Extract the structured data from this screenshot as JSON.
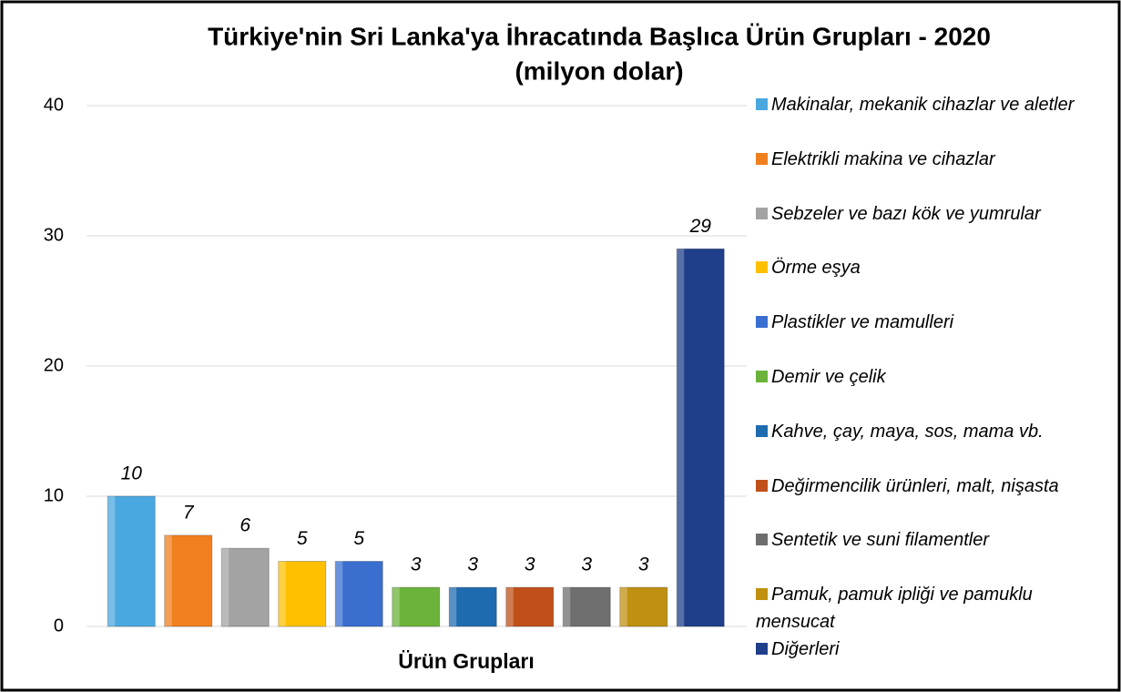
{
  "chart_data": {
    "type": "bar",
    "title": "Türkiye'nin Sri Lanka'ya İhracatında Başlıca Ürün Grupları - 2020",
    "subtitle": "(milyon dolar)",
    "x_label": "Ürün Grupları",
    "ylim": [
      0,
      40
    ],
    "yticks": [
      0,
      10,
      20,
      30,
      40
    ],
    "grid": true,
    "legend": "right",
    "series": [
      {
        "name": "Makinalar, mekanik cihazlar ve aletler",
        "color": "#4aa8e0",
        "values": [
          10
        ]
      },
      {
        "name": "Elektrikli makina ve cihazlar",
        "color": "#f07f1e",
        "values": [
          7
        ]
      },
      {
        "name": "Sebzeler ve bazı kök ve yumrular",
        "color": "#a3a3a3",
        "values": [
          6
        ]
      },
      {
        "name": "Örme eşya",
        "color": "#ffc000",
        "values": [
          5
        ]
      },
      {
        "name": "Plastikler ve mamulleri",
        "color": "#3a6fd0",
        "values": [
          5
        ]
      },
      {
        "name": "Demir ve çelik",
        "color": "#6bb33a",
        "values": [
          3
        ]
      },
      {
        "name": "Kahve, çay, maya, sos, mama vb.",
        "color": "#1f6bb0",
        "values": [
          3
        ]
      },
      {
        "name": "Değirmencilik ürünleri, malt, nişasta",
        "color": "#c0501a",
        "values": [
          3
        ]
      },
      {
        "name": "Sentetik ve suni filamentler",
        "color": "#6e6e6e",
        "values": [
          3
        ]
      },
      {
        "name": "Pamuk, pamuk ipliği ve pamuklu mensucat",
        "color": "#c09010",
        "values": [
          3
        ]
      },
      {
        "name": "Diğerleri",
        "color": "#1f3f8a",
        "values": [
          29
        ]
      }
    ]
  }
}
